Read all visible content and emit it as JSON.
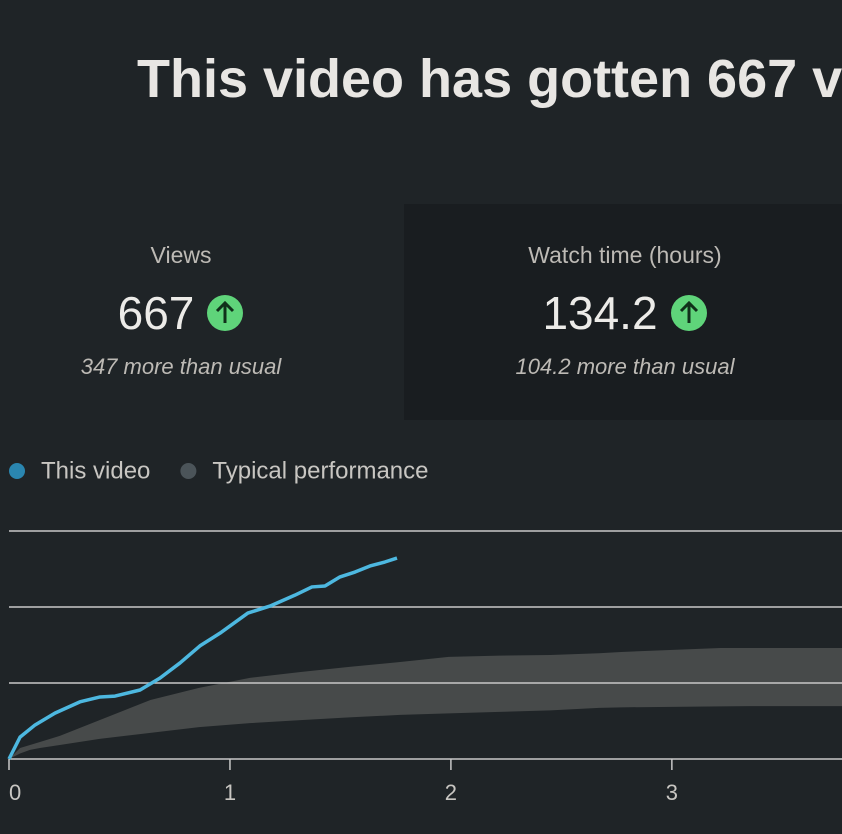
{
  "header": {
    "title": "This video has gotten 667 v"
  },
  "cards": [
    {
      "label": "Views",
      "value": 667,
      "note": "347 more than usual"
    },
    {
      "label": "Watch time (hours)",
      "value": 134.2,
      "note": "104.2 more than usual"
    }
  ],
  "chart_data": {
    "type": "line",
    "series": [
      {
        "name": "This video",
        "color": "#4db8e0",
        "legend_color": "#2a86b0",
        "x": [
          0,
          0.05,
          0.118,
          0.208,
          0.321,
          0.412,
          0.48,
          0.593,
          0.683,
          0.774,
          0.864,
          0.955,
          1.081,
          1.181,
          1.294,
          1.371,
          1.43,
          1.498,
          1.566,
          1.634,
          1.701,
          1.756
        ],
        "values": [
          0,
          72,
          112,
          151,
          188,
          204,
          207,
          227,
          266,
          316,
          372,
          414,
          480,
          503,
          539,
          566,
          569,
          599,
          615,
          635,
          648,
          661
        ]
      },
      {
        "name": "Typical performance",
        "color": "#474a4a",
        "legend_color": "#4b5459",
        "x": [
          0,
          0.05,
          0.095,
          0.14,
          0.23,
          0.41,
          0.64,
          0.86,
          1.09,
          1.32,
          1.54,
          1.77,
          1.99,
          2.22,
          2.45,
          2.67,
          2.77,
          3.22,
          3.35,
          3.77
        ],
        "high": [
          0,
          36,
          46,
          56,
          76,
          128,
          194,
          234,
          267,
          286,
          303,
          319,
          336,
          340,
          342,
          348,
          352,
          365,
          365,
          365
        ],
        "low": [
          0,
          18,
          30,
          36,
          46,
          66,
          86,
          105,
          118,
          128,
          137,
          145,
          150,
          155,
          160,
          168,
          170,
          173,
          174,
          174
        ]
      }
    ],
    "xlim": [
      0,
      3.77
    ],
    "xticks": [
      0,
      1,
      2,
      3
    ],
    "ylim": [
      0,
      750
    ],
    "yticks": [
      0,
      250,
      500,
      750
    ],
    "grid": true
  }
}
